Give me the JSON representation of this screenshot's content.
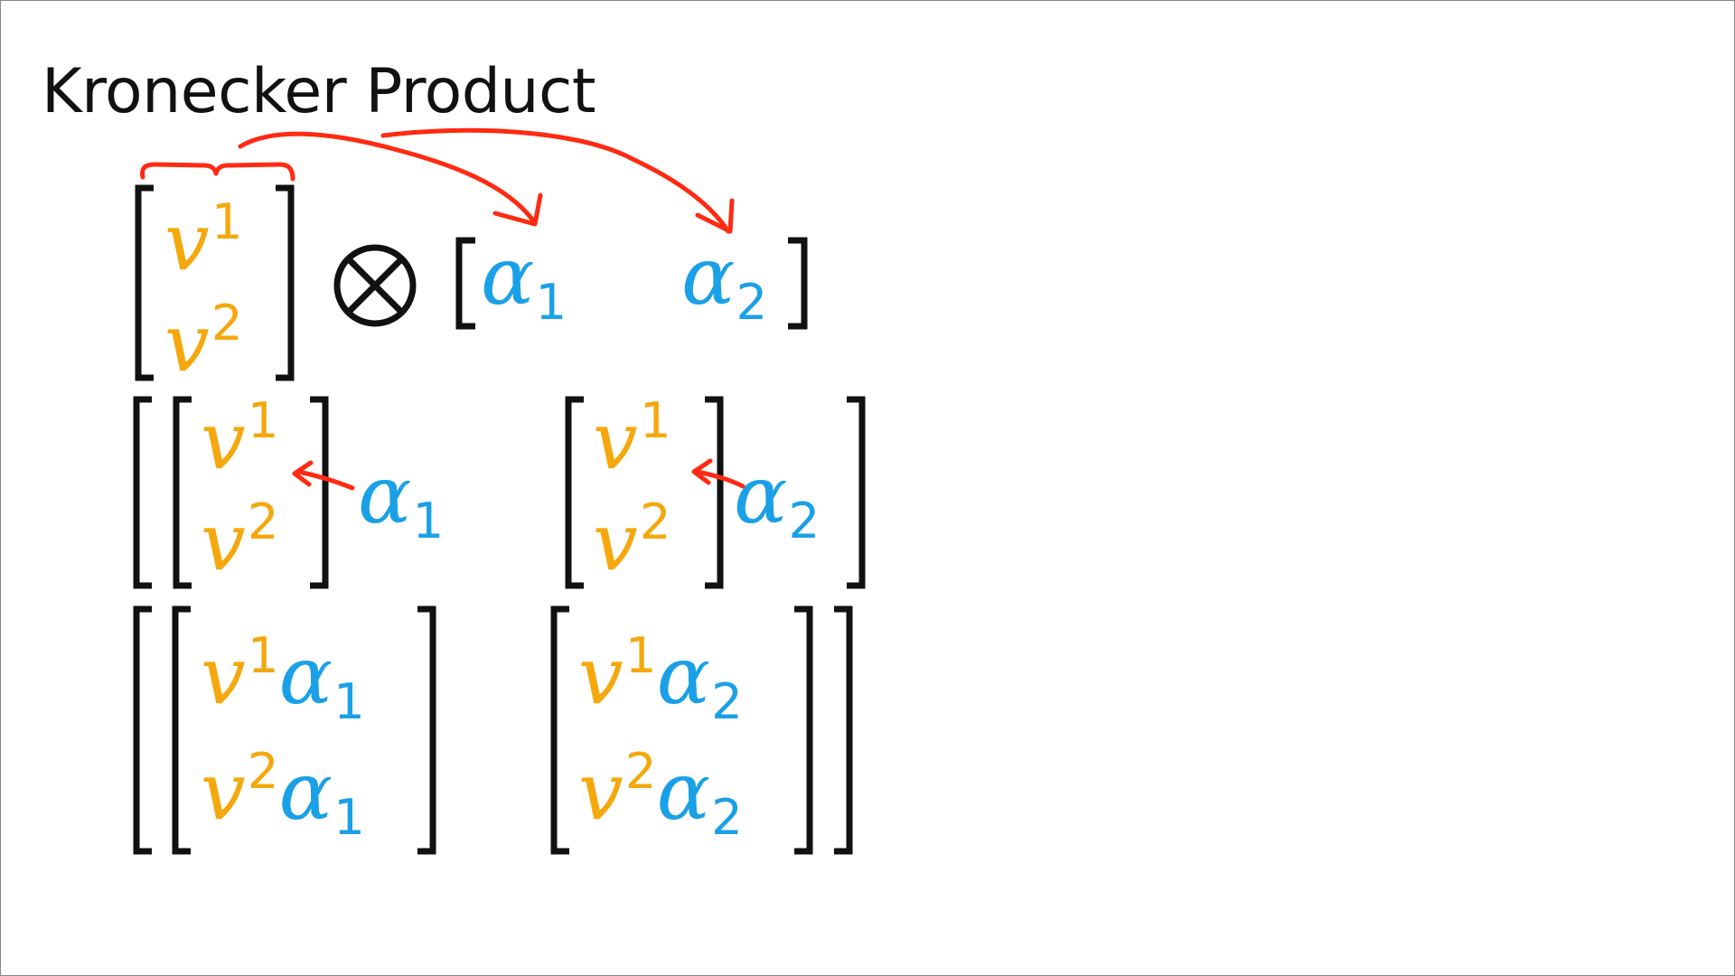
{
  "slide": {
    "title": "Kronecker Product"
  },
  "symbols": {
    "v": "v",
    "alpha": "α",
    "index_1": "1",
    "index_2": "2",
    "otimes": "⊗"
  },
  "colors": {
    "v_entries": "#f5a80d",
    "alpha_entries": "#1aa0e6",
    "annotation": "#ff2a12",
    "brackets": "#111111"
  }
}
